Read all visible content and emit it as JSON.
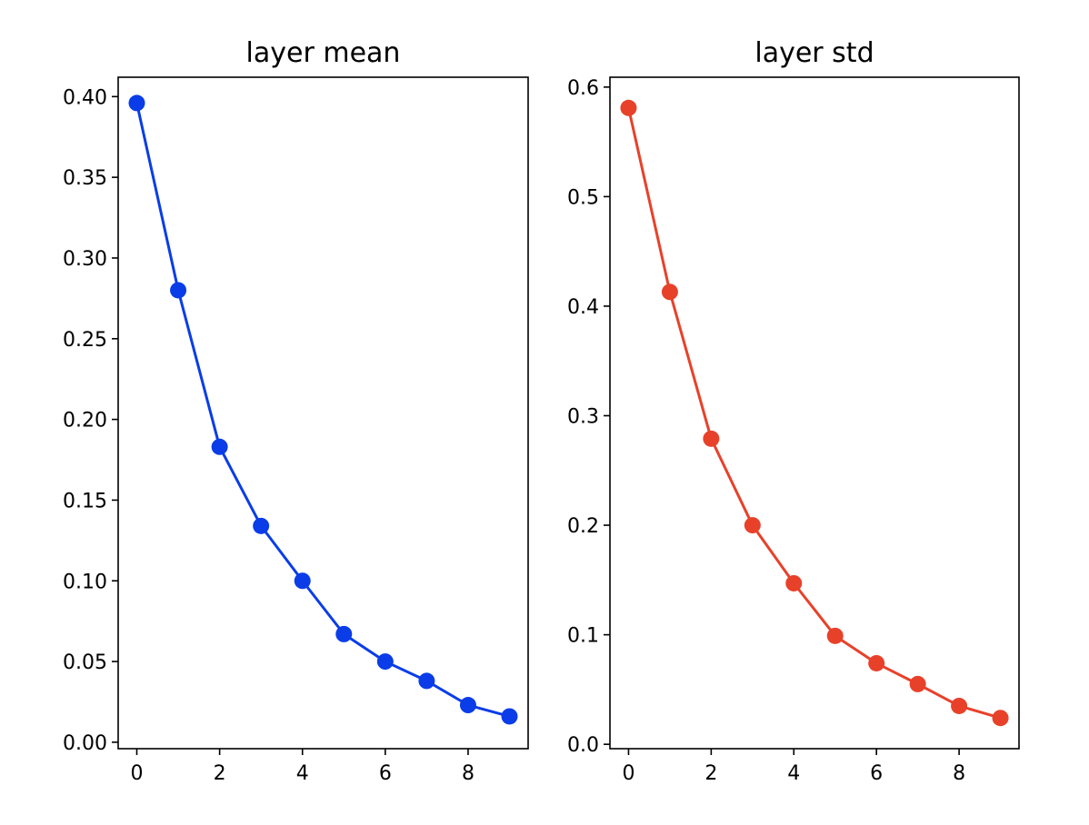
{
  "chart_data": [
    {
      "type": "line",
      "title": "layer mean",
      "xlabel": "",
      "ylabel": "",
      "x": [
        0,
        1,
        2,
        3,
        4,
        5,
        6,
        7,
        8,
        9
      ],
      "series": [
        {
          "values": [
            0.396,
            0.28,
            0.183,
            0.134,
            0.1,
            0.067,
            0.05,
            0.038,
            0.023,
            0.016
          ],
          "color": "#0a3de8",
          "marker": "circle"
        }
      ],
      "xlim": [
        -0.45,
        9.45
      ],
      "ylim": [
        -0.004,
        0.412
      ],
      "xticks": [
        0,
        2,
        4,
        6,
        8
      ],
      "xtick_labels": [
        "0",
        "2",
        "4",
        "6",
        "8"
      ],
      "yticks": [
        0.0,
        0.05,
        0.1,
        0.15,
        0.2,
        0.25,
        0.3,
        0.35,
        0.4
      ],
      "ytick_labels": [
        "0.00",
        "0.05",
        "0.10",
        "0.15",
        "0.20",
        "0.25",
        "0.30",
        "0.35",
        "0.40"
      ],
      "grid": false,
      "legend": null
    },
    {
      "type": "line",
      "title": "layer std",
      "xlabel": "",
      "ylabel": "",
      "x": [
        0,
        1,
        2,
        3,
        4,
        5,
        6,
        7,
        8,
        9
      ],
      "series": [
        {
          "values": [
            0.581,
            0.413,
            0.279,
            0.2,
            0.147,
            0.099,
            0.074,
            0.055,
            0.035,
            0.024
          ],
          "color": "#e8412a",
          "marker": "circle"
        }
      ],
      "xlim": [
        -0.45,
        9.45
      ],
      "ylim": [
        -0.004,
        0.609
      ],
      "xticks": [
        0,
        2,
        4,
        6,
        8
      ],
      "xtick_labels": [
        "0",
        "2",
        "4",
        "6",
        "8"
      ],
      "yticks": [
        0.0,
        0.1,
        0.2,
        0.3,
        0.4,
        0.5,
        0.6
      ],
      "ytick_labels": [
        "0.0",
        "0.1",
        "0.2",
        "0.3",
        "0.4",
        "0.5",
        "0.6"
      ],
      "grid": false,
      "legend": null
    }
  ]
}
